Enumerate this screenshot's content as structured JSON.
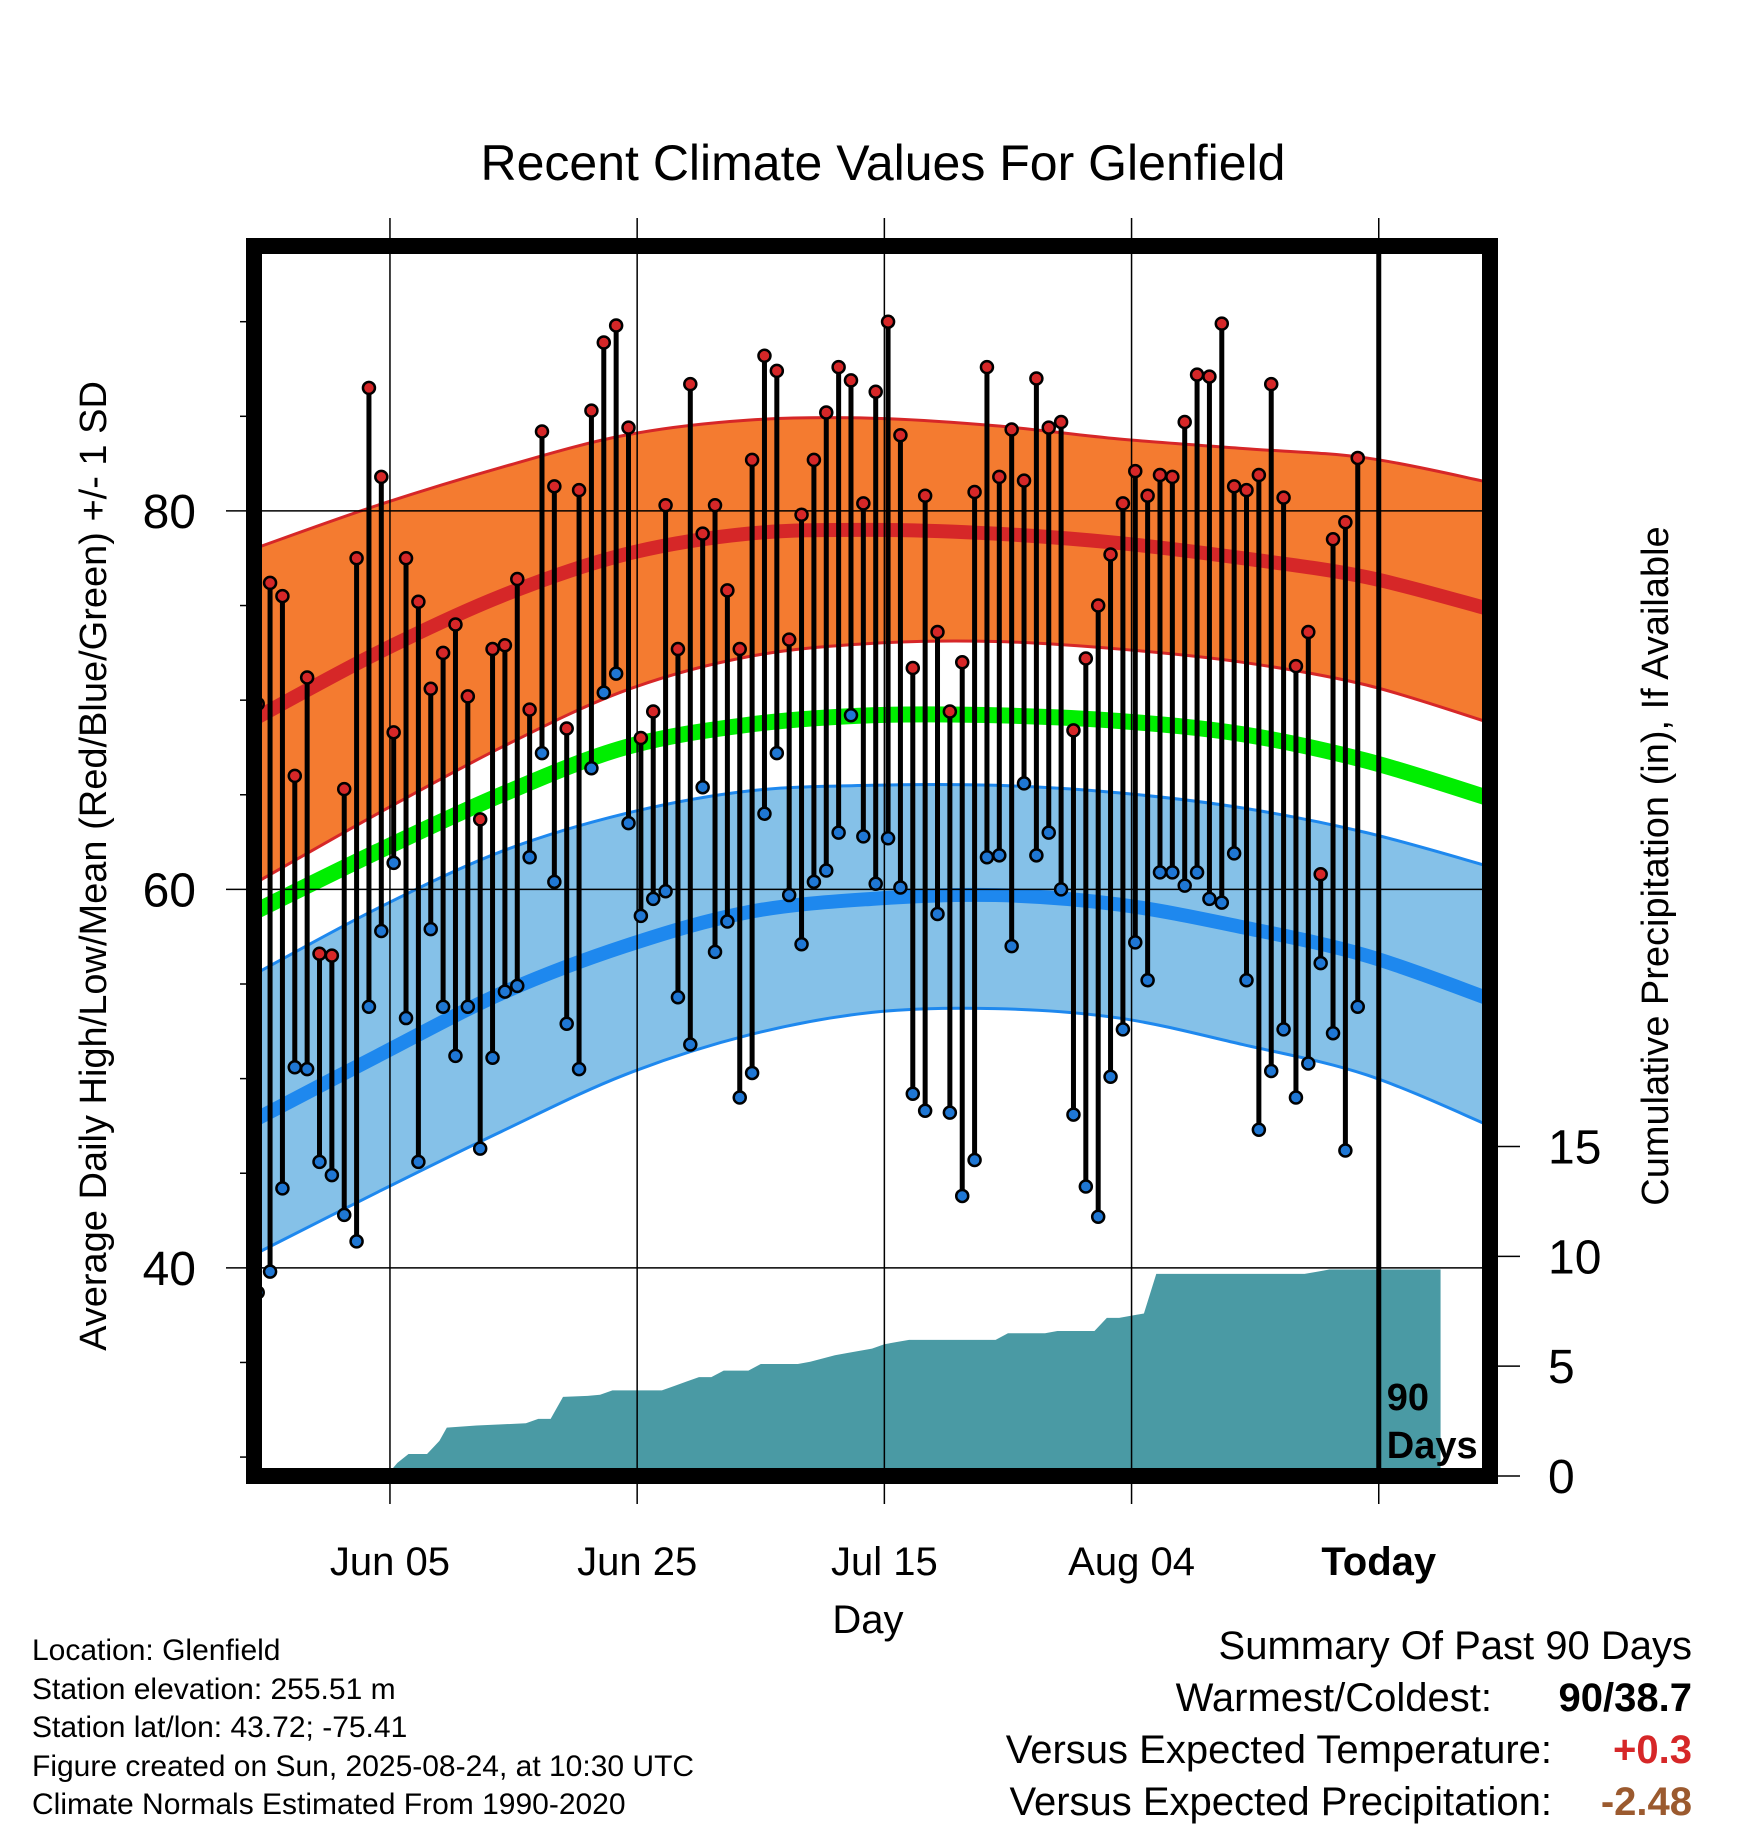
{
  "chart_data": {
    "type": "line",
    "title": "Recent Climate Values For Glenfield",
    "xlabel": "Day",
    "ylabel": "Average Daily High/Low/Mean (Red/Blue/Green) +/- 1 SD",
    "y2label": "Cumulative Precipitation (in), If Available",
    "x_ticks": [
      {
        "label": "Jun 05",
        "day": 11
      },
      {
        "label": "Jun 25",
        "day": 31
      },
      {
        "label": "Jul 15",
        "day": 51
      },
      {
        "label": "Aug 04",
        "day": 71
      },
      {
        "label": "Today",
        "day": 91,
        "bold": true
      }
    ],
    "x_range": [
      0,
      100
    ],
    "ylim": [
      29,
      94
    ],
    "y_ticks": [
      40,
      60,
      80
    ],
    "y2lim": [
      0,
      56
    ],
    "y2_ticks": [
      0,
      5,
      10,
      15
    ],
    "today_day": 91,
    "today_annotation": [
      "90",
      "Days"
    ],
    "grid": true,
    "normals": {
      "days": [
        0,
        10,
        20,
        30,
        40,
        50,
        60,
        70,
        80,
        90,
        100
      ],
      "high_mean": [
        69,
        72.5,
        75.5,
        77.7,
        78.8,
        79,
        78.8,
        78.3,
        77.5,
        76.5,
        74.8
      ],
      "high_upper": [
        78,
        80.3,
        82.3,
        84,
        84.8,
        84.9,
        84.5,
        83.8,
        83.3,
        82.8,
        81.5
      ],
      "high_lower": [
        60.3,
        64,
        67.5,
        70.5,
        72.3,
        73,
        73.1,
        72.7,
        72,
        70.8,
        68.8
      ],
      "mean": [
        58.8,
        62,
        65,
        67.5,
        68.7,
        69.2,
        69.2,
        68.9,
        68.2,
        66.8,
        64.8
      ],
      "low_mean": [
        47.8,
        51.2,
        54.5,
        57,
        58.8,
        59.5,
        59.7,
        59.2,
        58,
        56.5,
        54.2
      ],
      "low_upper": [
        55.5,
        59,
        62,
        64,
        65.2,
        65.5,
        65.5,
        65.1,
        64.3,
        63,
        61.2
      ],
      "low_lower": [
        40.7,
        44,
        47.2,
        50.2,
        52.3,
        53.5,
        53.7,
        53.2,
        51.8,
        50.2,
        47.5
      ]
    },
    "series": [
      {
        "name": "High",
        "color": "#d62728",
        "values": [
          69.8,
          76.2,
          75.5,
          66,
          71.2,
          56.6,
          56.5,
          65.3,
          77.5,
          86.5,
          81.8,
          68.3,
          77.5,
          75.2,
          70.6,
          72.5,
          74,
          70.2,
          63.7,
          72.7,
          72.9,
          76.4,
          69.5,
          84.2,
          81.3,
          68.5,
          81.1,
          85.3,
          88.9,
          89.8,
          84.4,
          68,
          69.4,
          80.3,
          72.7,
          86.7,
          78.8,
          80.3,
          75.8,
          72.7,
          82.7,
          88.2,
          87.4,
          73.2,
          79.8,
          82.7,
          85.2,
          87.6,
          86.9,
          80.4,
          86.3,
          90,
          84,
          71.7,
          80.8,
          73.6,
          69.4,
          72,
          81,
          87.6,
          81.8,
          84.3,
          81.6,
          87,
          84.4,
          84.7,
          68.4,
          72.2,
          75,
          77.7,
          80.4,
          82.1,
          80.8,
          81.9,
          81.8,
          84.7,
          87.2,
          87.1,
          89.9,
          81.3,
          81.1,
          81.9,
          86.7,
          80.7,
          71.8,
          73.6,
          60.8,
          78.5,
          79.4,
          82.8
        ]
      },
      {
        "name": "Low",
        "color": "#1f77d4",
        "values": [
          38.7,
          39.8,
          44.2,
          50.6,
          50.5,
          45.6,
          44.9,
          42.8,
          41.4,
          53.8,
          57.8,
          61.4,
          53.2,
          45.6,
          57.9,
          53.8,
          51.2,
          53.8,
          46.3,
          51.1,
          54.6,
          54.9,
          61.7,
          67.2,
          60.4,
          52.9,
          50.5,
          66.4,
          70.4,
          71.4,
          63.5,
          58.6,
          59.5,
          59.9,
          54.3,
          51.8,
          65.4,
          56.7,
          58.3,
          49,
          50.3,
          64,
          67.2,
          59.7,
          57.1,
          60.4,
          61,
          63,
          69.2,
          62.8,
          60.3,
          62.7,
          60.1,
          49.2,
          48.3,
          58.7,
          48.2,
          43.8,
          45.7,
          61.7,
          61.8,
          57,
          65.6,
          61.8,
          63,
          60,
          48.1,
          44.3,
          42.7,
          50.1,
          52.6,
          57.2,
          55.2,
          60.9,
          60.9,
          60.2,
          60.9,
          59.5,
          59.3,
          61.9,
          55.2,
          47.3,
          50.4,
          52.6,
          49,
          50.8,
          56.1,
          52.4,
          46.2,
          53.8
        ]
      }
    ],
    "precipitation": {
      "color": "#4a9aa4",
      "days": [
        11,
        11.6,
        12.5,
        14,
        15,
        15.6,
        18,
        20,
        22,
        23,
        24,
        25,
        27,
        28,
        29,
        33,
        34,
        35,
        36,
        37,
        38,
        40,
        41,
        44,
        45,
        47,
        48,
        50,
        51,
        52,
        53,
        60,
        61,
        64,
        65,
        68,
        69,
        70,
        71,
        72,
        73,
        85,
        86,
        87,
        88,
        96
      ],
      "cum_in": [
        0.2,
        0.6,
        1,
        1,
        1.6,
        2.2,
        2.3,
        2.35,
        2.4,
        2.6,
        2.6,
        3.6,
        3.65,
        3.7,
        3.9,
        3.9,
        4.1,
        4.3,
        4.5,
        4.5,
        4.8,
        4.8,
        5.1,
        5.1,
        5.2,
        5.5,
        5.6,
        5.8,
        6,
        6.1,
        6.2,
        6.2,
        6.5,
        6.5,
        6.6,
        6.6,
        7.2,
        7.2,
        7.3,
        7.4,
        9.2,
        9.2,
        9.3,
        9.4,
        9.4,
        9.4
      ]
    }
  },
  "footer": {
    "location": "Location: Glenfield",
    "elevation": "Station elevation: 255.51 m",
    "latlon": "Station lat/lon: 43.72; -75.41",
    "created": "Figure created on Sun, 2025-08-24, at 10:30 UTC",
    "normals": "Climate Normals Estimated From 1990-2020"
  },
  "summary": {
    "title": "Summary Of Past 90 Days",
    "warmest_coldest_label": "Warmest/Coldest:",
    "warmest_coldest_value": "90/38.7",
    "temp_label": "Versus Expected Temperature:",
    "temp_value": "+0.3",
    "temp_color": "#d62728",
    "precip_label": "Versus Expected Precipitation:",
    "precip_value": "-2.48",
    "precip_color": "#9b5a2f"
  }
}
